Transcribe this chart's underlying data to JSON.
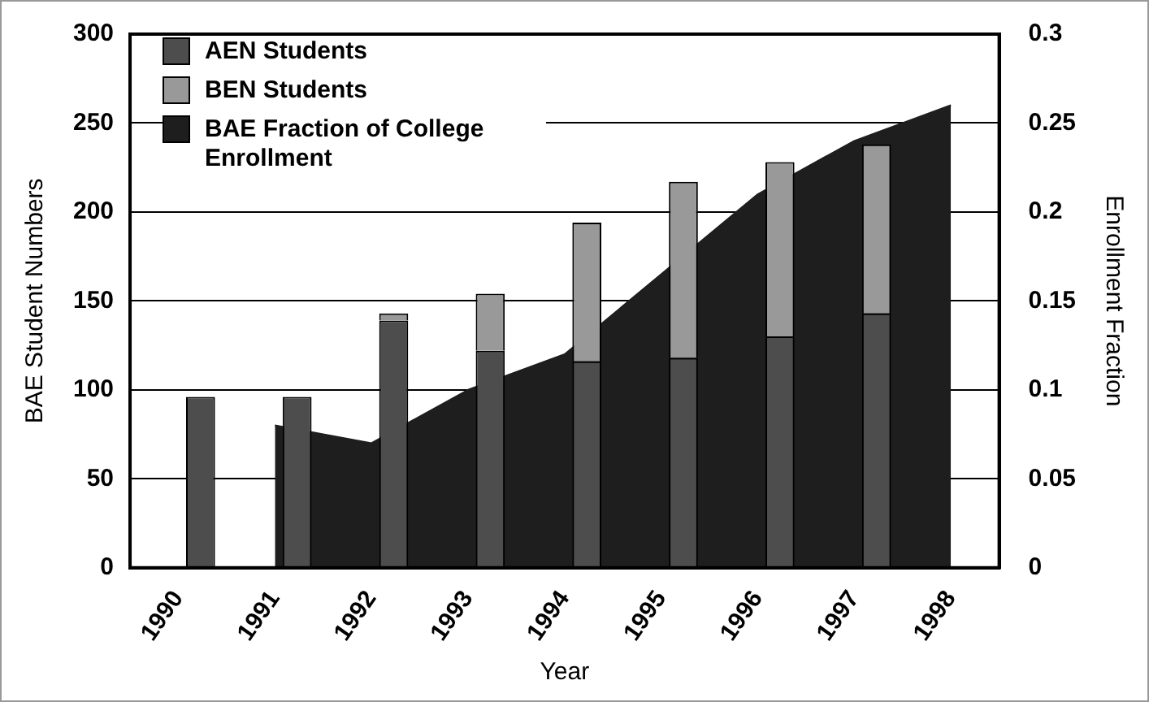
{
  "chart_data": {
    "type": "bar",
    "stacked": true,
    "xlabel": "Year",
    "ylabel": "BAE Student Numbers",
    "y2label": "Enrollment Fraction",
    "categories": [
      "1990",
      "1991",
      "1992",
      "1993",
      "1994",
      "1995",
      "1996",
      "1997",
      "1998"
    ],
    "series": [
      {
        "name": "AEN Students",
        "color": "#4d4d4d",
        "values": [
          96,
          96,
          139,
          122,
          116,
          118,
          130,
          143,
          null
        ]
      },
      {
        "name": "BEN Students",
        "color": "#999999",
        "values": [
          0,
          0,
          4,
          32,
          78,
          99,
          98,
          95,
          null
        ]
      },
      {
        "name": "BAE Fraction of College Enrollment",
        "type": "area",
        "axis": "y2",
        "color": "#1e1e1e",
        "values": [
          null,
          0.08,
          0.07,
          0.1,
          0.12,
          0.165,
          0.21,
          0.24,
          0.26
        ]
      }
    ],
    "ylim": [
      0,
      300
    ],
    "yticks": [
      0,
      50,
      100,
      150,
      200,
      250,
      300
    ],
    "y2lim": [
      0,
      0.3
    ],
    "y2ticks": [
      0,
      0.05,
      0.1,
      0.15,
      0.2,
      0.25,
      0.3
    ],
    "grid": "y",
    "legend": "top left",
    "marker": "none"
  }
}
